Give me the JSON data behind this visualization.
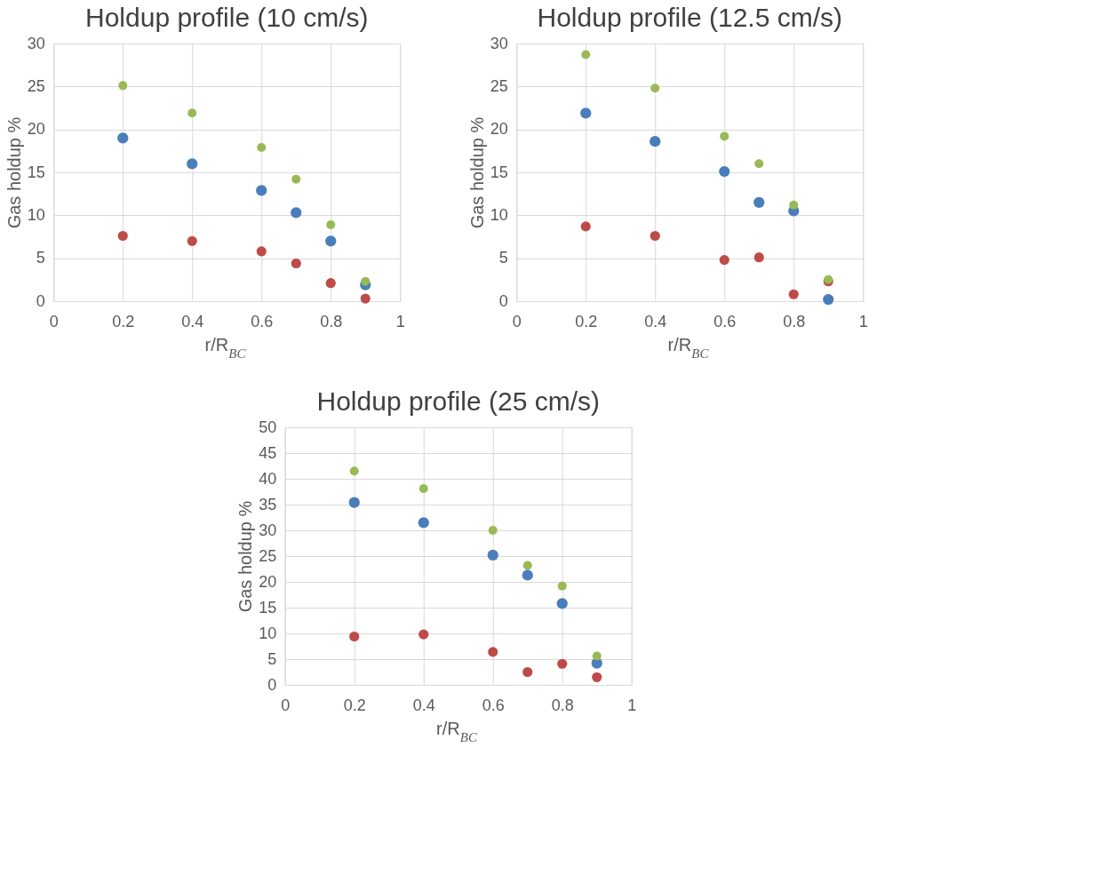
{
  "chart_data": [
    {
      "type": "scatter",
      "title": "Holdup profile (10 cm/s)",
      "xlabel": "r/R$_{BC}$",
      "ylabel": "Gas holdup %",
      "x": [
        0.2,
        0.4,
        0.6,
        0.7,
        0.8,
        0.9
      ],
      "xlim": [
        0,
        1
      ],
      "xticks": [
        0,
        0.2,
        0.4,
        0.6,
        0.8,
        1
      ],
      "ylim": [
        0,
        30
      ],
      "yticks": [
        0,
        5,
        10,
        15,
        20,
        25,
        30
      ],
      "grid": true,
      "legend": false,
      "marker": "circle",
      "series": [
        {
          "color": "#4a7ebb",
          "values": [
            19.0,
            16.0,
            12.9,
            10.3,
            7.0,
            1.9
          ]
        },
        {
          "color": "#be4b48",
          "values": [
            7.6,
            7.0,
            5.8,
            4.4,
            2.1,
            0.3
          ]
        },
        {
          "color": "#98b954",
          "values": [
            25.1,
            21.9,
            17.9,
            14.2,
            8.9,
            2.3
          ]
        }
      ]
    },
    {
      "type": "scatter",
      "title": "Holdup profile (12.5 cm/s)",
      "xlabel": "r/R$_{BC}$",
      "ylabel": "Gas holdup %",
      "x": [
        0.2,
        0.4,
        0.6,
        0.7,
        0.8,
        0.9
      ],
      "xlim": [
        0,
        1
      ],
      "xticks": [
        0,
        0.2,
        0.4,
        0.6,
        0.8,
        1
      ],
      "ylim": [
        0,
        30
      ],
      "yticks": [
        0,
        5,
        10,
        15,
        20,
        25,
        30
      ],
      "grid": true,
      "legend": false,
      "marker": "circle",
      "series": [
        {
          "color": "#4a7ebb",
          "values": [
            21.9,
            18.6,
            15.1,
            11.5,
            10.5,
            0.2
          ]
        },
        {
          "color": "#be4b48",
          "values": [
            8.7,
            7.6,
            4.8,
            5.1,
            0.8,
            2.3
          ]
        },
        {
          "color": "#98b954",
          "values": [
            28.7,
            24.8,
            19.2,
            16.0,
            11.2,
            2.5
          ]
        }
      ]
    },
    {
      "type": "scatter",
      "title": "Holdup profile (25 cm/s)",
      "xlabel": "r/R$_{BC}$",
      "ylabel": "Gas holdup %",
      "x": [
        0.2,
        0.4,
        0.6,
        0.7,
        0.8,
        0.9
      ],
      "xlim": [
        0,
        1
      ],
      "xticks": [
        0,
        0.2,
        0.4,
        0.6,
        0.8,
        1
      ],
      "ylim": [
        0,
        50
      ],
      "yticks": [
        0,
        5,
        10,
        15,
        20,
        25,
        30,
        35,
        40,
        45,
        50
      ],
      "grid": true,
      "legend": false,
      "marker": "circle",
      "series": [
        {
          "color": "#4a7ebb",
          "values": [
            35.4,
            31.5,
            25.2,
            21.3,
            15.8,
            4.2
          ]
        },
        {
          "color": "#be4b48",
          "values": [
            9.4,
            9.8,
            6.4,
            2.5,
            4.1,
            1.5
          ]
        },
        {
          "color": "#98b954",
          "values": [
            41.5,
            38.1,
            30.0,
            23.2,
            19.2,
            5.6
          ]
        }
      ]
    }
  ]
}
